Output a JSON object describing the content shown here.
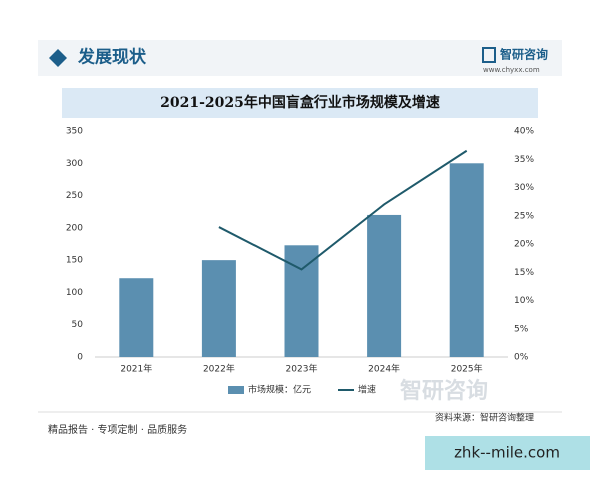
{
  "header": {
    "title": "发展现状",
    "brand": "智研咨询",
    "url": "www.chyxx.com"
  },
  "chart_data": {
    "type": "bar",
    "title": "2021-2025年中国盲盒行业市场规模及增速",
    "categories": [
      "2021年",
      "2022年",
      "2023年",
      "2024年",
      "2025年"
    ],
    "series": [
      {
        "name": "市场规模：亿元",
        "type": "bar",
        "color": "#5b8fb0",
        "values": [
          122,
          150,
          173,
          220,
          300
        ]
      },
      {
        "name": "增速",
        "type": "line",
        "axis": "y2",
        "color": "#1f5a6b",
        "values": [
          null,
          23,
          15.5,
          27,
          36.5
        ]
      }
    ],
    "ylim": [
      0,
      350
    ],
    "yticks": [
      0,
      50,
      100,
      150,
      200,
      250,
      300,
      350
    ],
    "y2lim": [
      0,
      40
    ],
    "y2ticks": [
      {
        "value": 0,
        "label": "0%"
      },
      {
        "value": 5,
        "label": "5%"
      },
      {
        "value": 10,
        "label": "10%"
      },
      {
        "value": 15,
        "label": "15%"
      },
      {
        "value": 20,
        "label": "20%"
      },
      {
        "value": 25,
        "label": "25%"
      },
      {
        "value": 30,
        "label": "30%"
      },
      {
        "value": 35,
        "label": "35%"
      },
      {
        "value": 40,
        "label": "40%"
      }
    ],
    "grid": false,
    "legend": "bottom"
  },
  "legend_watermark": "智研咨询",
  "source": "资料来源：智研咨询整理",
  "footer": "精品报告 · 专项定制 · 品质服务",
  "watermark": "zhk--mile.com"
}
